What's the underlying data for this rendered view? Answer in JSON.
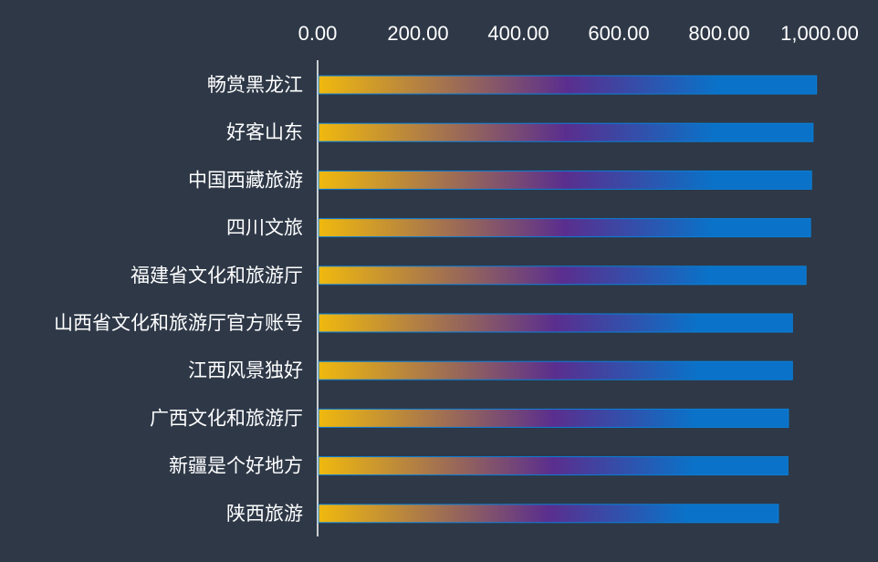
{
  "colors": {
    "background": "#2e3847",
    "bar_start": "#f0b90e",
    "bar_mid": "#5a2e8e",
    "bar_end": "#0a72c8",
    "bar_edge": "#0a7fd8",
    "axis_line": "#ffffff",
    "text": "#ffffff"
  },
  "chart_data": {
    "type": "bar",
    "orientation": "horizontal",
    "title": "",
    "xlabel": "",
    "ylabel": "",
    "xlim": [
      0,
      1000
    ],
    "x_ticks": [
      "0.00",
      "200.00",
      "400.00",
      "600.00",
      "800.00",
      "1,000.00"
    ],
    "x_axis_position": "top",
    "grid": false,
    "legend": "none",
    "categories": [
      "畅赏黑龙江",
      "好客山东",
      "中国西藏旅游",
      "四川文旅",
      "福建省文化和旅游厅",
      "山西省文化和旅游厅官方账号",
      "江西风景独好",
      "广西文化和旅游厅",
      "新疆是个好地方",
      "陕西旅游"
    ],
    "values": [
      994,
      987,
      984,
      982,
      973,
      946,
      946,
      938,
      937,
      918
    ]
  }
}
